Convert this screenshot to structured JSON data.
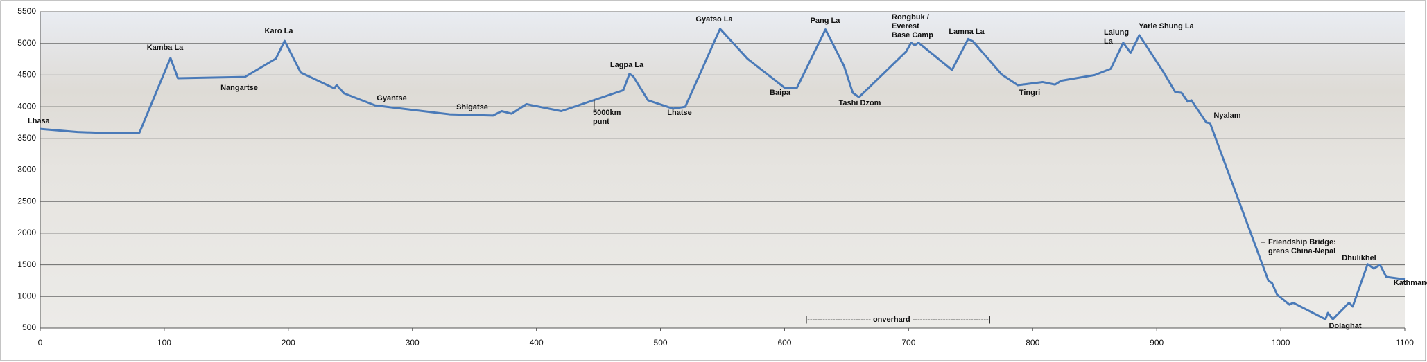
{
  "chart_data": {
    "type": "line",
    "series": [
      {
        "color": "#4a7ab8",
        "x": [
          0,
          30,
          60,
          80,
          105,
          111,
          165,
          190,
          197,
          210,
          237,
          239,
          245,
          270,
          330,
          365,
          372,
          380,
          392,
          420,
          470,
          475,
          478,
          490,
          510,
          520,
          548,
          570,
          600,
          610,
          633,
          648,
          655,
          660,
          698,
          702,
          705,
          708,
          735,
          748,
          752,
          775,
          788,
          808,
          818,
          823,
          850,
          863,
          873,
          879,
          886,
          905,
          915,
          920,
          925,
          928,
          940,
          943,
          990,
          993,
          997,
          1007,
          1010,
          1036,
          1038,
          1042,
          1055,
          1058,
          1070,
          1075,
          1080,
          1085,
          1100
        ],
        "values": [
          3650,
          3600,
          3580,
          3590,
          4770,
          4450,
          4470,
          4760,
          5040,
          4540,
          4290,
          4340,
          4210,
          4020,
          3880,
          3860,
          3930,
          3890,
          4040,
          3930,
          4260,
          4520,
          4480,
          4100,
          3970,
          4000,
          5230,
          4760,
          4300,
          4300,
          5220,
          4640,
          4220,
          4150,
          4870,
          5010,
          4970,
          5010,
          4580,
          5070,
          5030,
          4510,
          4340,
          4390,
          4350,
          4410,
          4500,
          4600,
          5010,
          4850,
          5130,
          4560,
          4230,
          4220,
          4080,
          4100,
          3750,
          3740,
          1250,
          1210,
          1030,
          870,
          900,
          640,
          740,
          640,
          900,
          840,
          1510,
          1440,
          1500,
          1310,
          1270
        ]
      }
    ],
    "xlim": [
      0,
      1100
    ],
    "xticks": [
      0,
      100,
      200,
      300,
      400,
      500,
      600,
      700,
      800,
      900,
      1000,
      1100
    ],
    "ylim": [
      500,
      5500
    ],
    "yticks": [
      500,
      1000,
      1500,
      2000,
      2500,
      3000,
      3500,
      4000,
      4500,
      5000,
      5500
    ],
    "grid": true,
    "annotations": [
      [
        "Lhasa"
      ],
      [
        "Kamba La"
      ],
      [
        "Karo La"
      ],
      [
        "Nangartse"
      ],
      [
        "Gyantse"
      ],
      [
        "Shigatse"
      ],
      [
        "Lagpa La"
      ],
      [
        "5000km",
        "punt"
      ],
      [
        "Lhatse"
      ],
      [
        "Gyatso La"
      ],
      [
        "Pang La"
      ],
      [
        "Baipa"
      ],
      [
        "Tashi Dzom"
      ],
      [
        "Rongbuk /",
        "Everest",
        "Base Camp"
      ],
      [
        "Lamna La"
      ],
      [
        "Tingri"
      ],
      [
        "Lalung",
        "La"
      ],
      [
        "Yarle Shung La"
      ],
      [
        "Nyalam"
      ],
      [
        "Friendship Bridge:",
        "grens China-Nepal"
      ],
      [
        "Dhulikhel"
      ],
      [
        "Kathmandu"
      ],
      [
        "Dolaghat"
      ],
      [
        "|------------------------- onverhard ------------------------------|"
      ]
    ]
  }
}
